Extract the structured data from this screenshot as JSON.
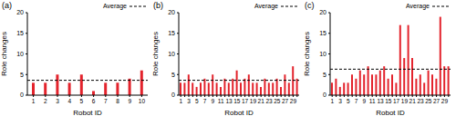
{
  "chart_data": [
    {
      "type": "bar",
      "title": "(a)",
      "x_label": "Robot ID",
      "y_label": "Role changes",
      "categories": [
        1,
        2,
        3,
        4,
        5,
        6,
        7,
        8,
        9,
        10
      ],
      "values": [
        3,
        3,
        5,
        3,
        5,
        1,
        3,
        3,
        4,
        6
      ],
      "color": "#e3232c",
      "ylim": [
        0,
        20
      ],
      "yticks": [
        0,
        5,
        10,
        15,
        20
      ],
      "average": {
        "label": "Average",
        "value": 3.6
      }
    },
    {
      "type": "bar",
      "title": "(b)",
      "x_label": "Robot ID",
      "y_label": "Role changes",
      "categories": [
        1,
        null,
        3,
        null,
        5,
        null,
        7,
        null,
        9,
        null,
        11,
        null,
        13,
        null,
        15,
        null,
        17,
        null,
        19,
        null,
        21,
        null,
        23,
        null,
        25,
        null,
        27,
        null,
        29,
        null
      ],
      "values": [
        3,
        3,
        5,
        3,
        2,
        3,
        4,
        3,
        5,
        3,
        2,
        4,
        3,
        4,
        6,
        3,
        4,
        5,
        3,
        3,
        2,
        4,
        3,
        3,
        4,
        2,
        5,
        3,
        7,
        4
      ],
      "color": "#e3232c",
      "ylim": [
        0,
        20
      ],
      "yticks": [
        0,
        5,
        10,
        15,
        20
      ],
      "average": {
        "label": "Average",
        "value": 3.6
      }
    },
    {
      "type": "bar",
      "title": "(c)",
      "x_label": "Robot ID",
      "y_label": "Role changes",
      "categories": [
        1,
        null,
        3,
        null,
        5,
        null,
        7,
        null,
        9,
        null,
        11,
        null,
        13,
        null,
        15,
        null,
        17,
        null,
        19,
        null,
        21,
        null,
        23,
        null,
        25,
        null,
        27,
        null,
        29,
        null
      ],
      "values": [
        3,
        4,
        2,
        3,
        3,
        5,
        4,
        6,
        5,
        7,
        5,
        5,
        6,
        7,
        4,
        5,
        3,
        17,
        9,
        17,
        9,
        4,
        5,
        3,
        6,
        5,
        4,
        19,
        7,
        7
      ],
      "color": "#e3232c",
      "ylim": [
        0,
        20
      ],
      "yticks": [
        0,
        5,
        10,
        15,
        20
      ],
      "average": {
        "label": "Average",
        "value": 6.3
      }
    }
  ]
}
